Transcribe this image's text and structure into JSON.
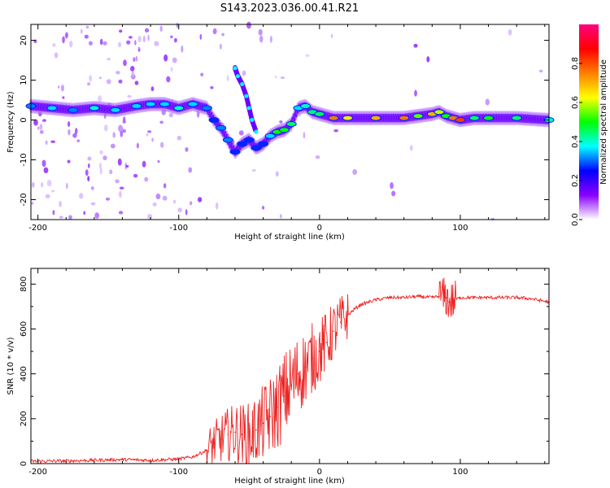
{
  "title": "S143.2023.036.00.41.R21",
  "chart_data": [
    {
      "type": "heatmap",
      "xlabel": "Height of straight line (km)",
      "ylabel": "Frequency (Hz)",
      "xlim": [
        -205,
        163
      ],
      "ylim": [
        -25,
        24
      ],
      "xticks": [
        -200,
        -100,
        0,
        100
      ],
      "yticks": [
        -20,
        -10,
        0,
        10,
        20
      ],
      "colorbar": {
        "label": "Normalized spectral amplitude",
        "range": [
          0,
          1
        ],
        "ticks": [
          "0.0",
          "0.2",
          "0.4",
          "0.6",
          "0.8"
        ],
        "colors": [
          "#ffffff",
          "#8a00ff",
          "#0000ff",
          "#00ffff",
          "#00ff00",
          "#ffff00",
          "#ff7f00",
          "#ff0000",
          "#ff0080"
        ]
      },
      "main_trace": {
        "x": [
          -205,
          -190,
          -175,
          -160,
          -145,
          -130,
          -120,
          -110,
          -100,
          -90,
          -80,
          -75,
          -70,
          -65,
          -60,
          -55,
          -50,
          -45,
          -40,
          -35,
          -30,
          -25,
          -20,
          -15,
          -10,
          -5,
          0,
          10,
          20,
          40,
          60,
          70,
          80,
          85,
          90,
          95,
          100,
          110,
          120,
          140,
          163
        ],
        "y": [
          3.5,
          3.0,
          2.5,
          3.0,
          2.5,
          3.5,
          4.0,
          4.0,
          3.0,
          4.0,
          3.0,
          0.0,
          -2.0,
          -5.0,
          -8.0,
          -6.0,
          -5.0,
          -7.0,
          -6.0,
          -4.0,
          -3.0,
          -2.5,
          -1.0,
          3.0,
          3.5,
          2.0,
          1.5,
          0.5,
          0.5,
          0.5,
          0.5,
          1.0,
          1.5,
          2.0,
          1.0,
          0.5,
          0.0,
          0.5,
          0.5,
          0.5,
          0.0
        ],
        "intensity": [
          0.35,
          0.4,
          0.35,
          0.45,
          0.4,
          0.4,
          0.4,
          0.4,
          0.45,
          0.4,
          0.35,
          0.3,
          0.35,
          0.35,
          0.3,
          0.3,
          0.3,
          0.3,
          0.3,
          0.4,
          0.55,
          0.55,
          0.5,
          0.4,
          0.45,
          0.5,
          0.5,
          0.8,
          0.7,
          0.75,
          0.8,
          0.6,
          0.75,
          0.65,
          0.55,
          0.8,
          0.85,
          0.5,
          0.55,
          0.5,
          0.45
        ]
      },
      "secondary_trace": {
        "x": [
          -60,
          -58,
          -55,
          -52,
          -50,
          -48,
          -45
        ],
        "y": [
          13,
          11,
          9,
          6,
          3,
          0,
          -3
        ],
        "intensity": [
          0.3,
          0.3,
          0.3,
          0.3,
          0.3,
          0.3,
          0.3
        ]
      }
    },
    {
      "type": "line",
      "xlabel": "Height of straight line (km)",
      "ylabel": "SNR (10 * v/v)",
      "xlim": [
        -205,
        163
      ],
      "ylim": [
        0,
        870
      ],
      "xticks": [
        -200,
        -100,
        0,
        100
      ],
      "yticks": [
        0,
        200,
        400,
        600,
        800
      ],
      "series": [
        {
          "color": "#ee2222",
          "x": [
            -205,
            -180,
            -160,
            -140,
            -120,
            -100,
            -90,
            -80,
            -75,
            -70,
            -65,
            -60,
            -55,
            -50,
            -45,
            -40,
            -35,
            -30,
            -25,
            -20,
            -15,
            -10,
            -5,
            0,
            5,
            10,
            15,
            20,
            25,
            30,
            40,
            50,
            60,
            70,
            80,
            85,
            90,
            92,
            95,
            100,
            110,
            120,
            130,
            140,
            150,
            163
          ],
          "y": [
            10,
            12,
            15,
            18,
            15,
            20,
            30,
            60,
            90,
            110,
            130,
            140,
            130,
            120,
            150,
            180,
            210,
            250,
            300,
            350,
            400,
            430,
            470,
            500,
            540,
            590,
            630,
            660,
            690,
            710,
            730,
            740,
            740,
            745,
            740,
            745,
            740,
            720,
            725,
            740,
            740,
            740,
            740,
            740,
            735,
            720
          ]
        }
      ]
    }
  ]
}
